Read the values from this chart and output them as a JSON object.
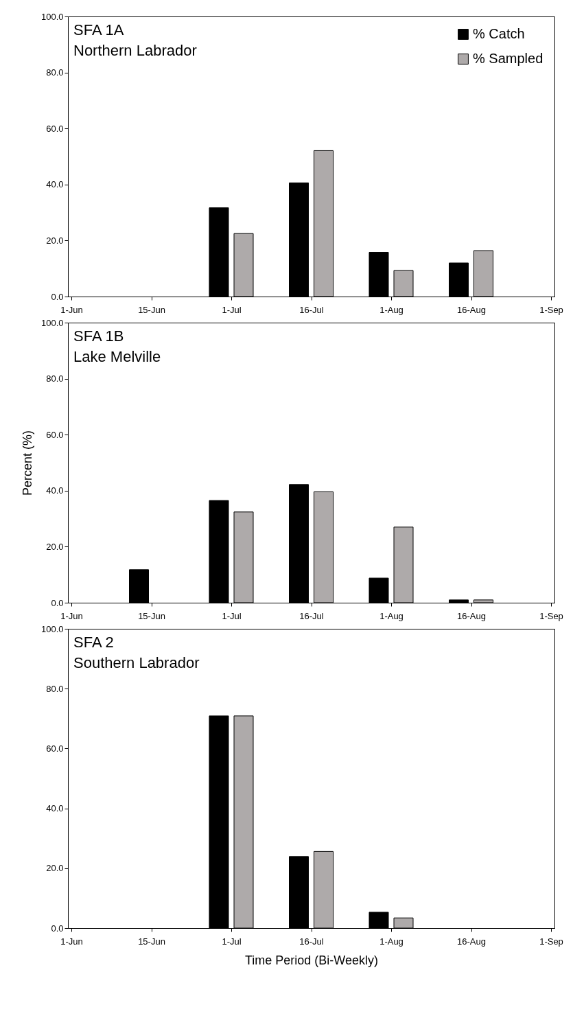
{
  "chart_data": [
    {
      "type": "bar",
      "title": "SFA 1A",
      "subtitle": "Northern Labrador",
      "categories": [
        "1-Jun",
        "15-Jun",
        "1-Jul",
        "16-Jul",
        "1-Aug",
        "16-Aug",
        "1-Sep"
      ],
      "series": [
        {
          "name": "% Catch",
          "color": "#000000",
          "values": [
            null,
            null,
            31.7,
            40.6,
            15.8,
            12.0,
            null
          ]
        },
        {
          "name": "% Sampled",
          "color": "#aeaaaa",
          "values": [
            null,
            null,
            22.5,
            52.1,
            9.3,
            16.4,
            null
          ]
        }
      ],
      "ylim": [
        0,
        100
      ],
      "yticks": [
        {
          "value": 0,
          "label": "0.0"
        },
        {
          "value": 20,
          "label": "20.0"
        },
        {
          "value": 40,
          "label": "40.0"
        },
        {
          "value": 60,
          "label": "60.0"
        },
        {
          "value": 80,
          "label": "80.0"
        },
        {
          "value": 100,
          "label": "100.0"
        }
      ],
      "legend": "top right"
    },
    {
      "type": "bar",
      "title": "SFA 1B",
      "subtitle": "Lake Melville",
      "ylabel": "Percent (%)",
      "categories": [
        "1-Jun",
        "15-Jun",
        "1-Jul",
        "16-Jul",
        "1-Aug",
        "16-Aug",
        "1-Sep"
      ],
      "series": [
        {
          "color": "#000000",
          "values": [
            null,
            11.8,
            36.5,
            42.2,
            8.8,
            1.0,
            null
          ]
        },
        {
          "color": "#aeaaaa",
          "values": [
            null,
            null,
            32.4,
            39.6,
            27.0,
            1.0,
            null
          ]
        }
      ],
      "ylim": [
        0,
        100
      ],
      "yticks": [
        {
          "value": 0,
          "label": "0.0"
        },
        {
          "value": 20,
          "label": "20.0"
        },
        {
          "value": 40,
          "label": "40.0"
        },
        {
          "value": 60,
          "label": "60.0"
        },
        {
          "value": 80,
          "label": "80.0"
        },
        {
          "value": 100,
          "label": "100.0"
        }
      ]
    },
    {
      "type": "bar",
      "title": "SFA 2",
      "subtitle": "Southern Labrador",
      "xlabel": "Time Period (Bi-Weekly)",
      "categories": [
        "1-Jun",
        "15-Jun",
        "1-Jul",
        "16-Jul",
        "1-Aug",
        "16-Aug",
        "1-Sep"
      ],
      "series": [
        {
          "color": "#000000",
          "values": [
            null,
            null,
            70.9,
            23.9,
            5.3,
            null,
            null
          ]
        },
        {
          "color": "#aeaaaa",
          "values": [
            null,
            null,
            70.9,
            25.6,
            3.4,
            null,
            null
          ]
        }
      ],
      "ylim": [
        0,
        100
      ],
      "yticks": [
        {
          "value": 0,
          "label": "0.0"
        },
        {
          "value": 20,
          "label": "20.0"
        },
        {
          "value": 40,
          "label": "40.0"
        },
        {
          "value": 60,
          "label": "60.0"
        },
        {
          "value": 80,
          "label": "80.0"
        },
        {
          "value": 100,
          "label": "100.0"
        }
      ]
    }
  ]
}
